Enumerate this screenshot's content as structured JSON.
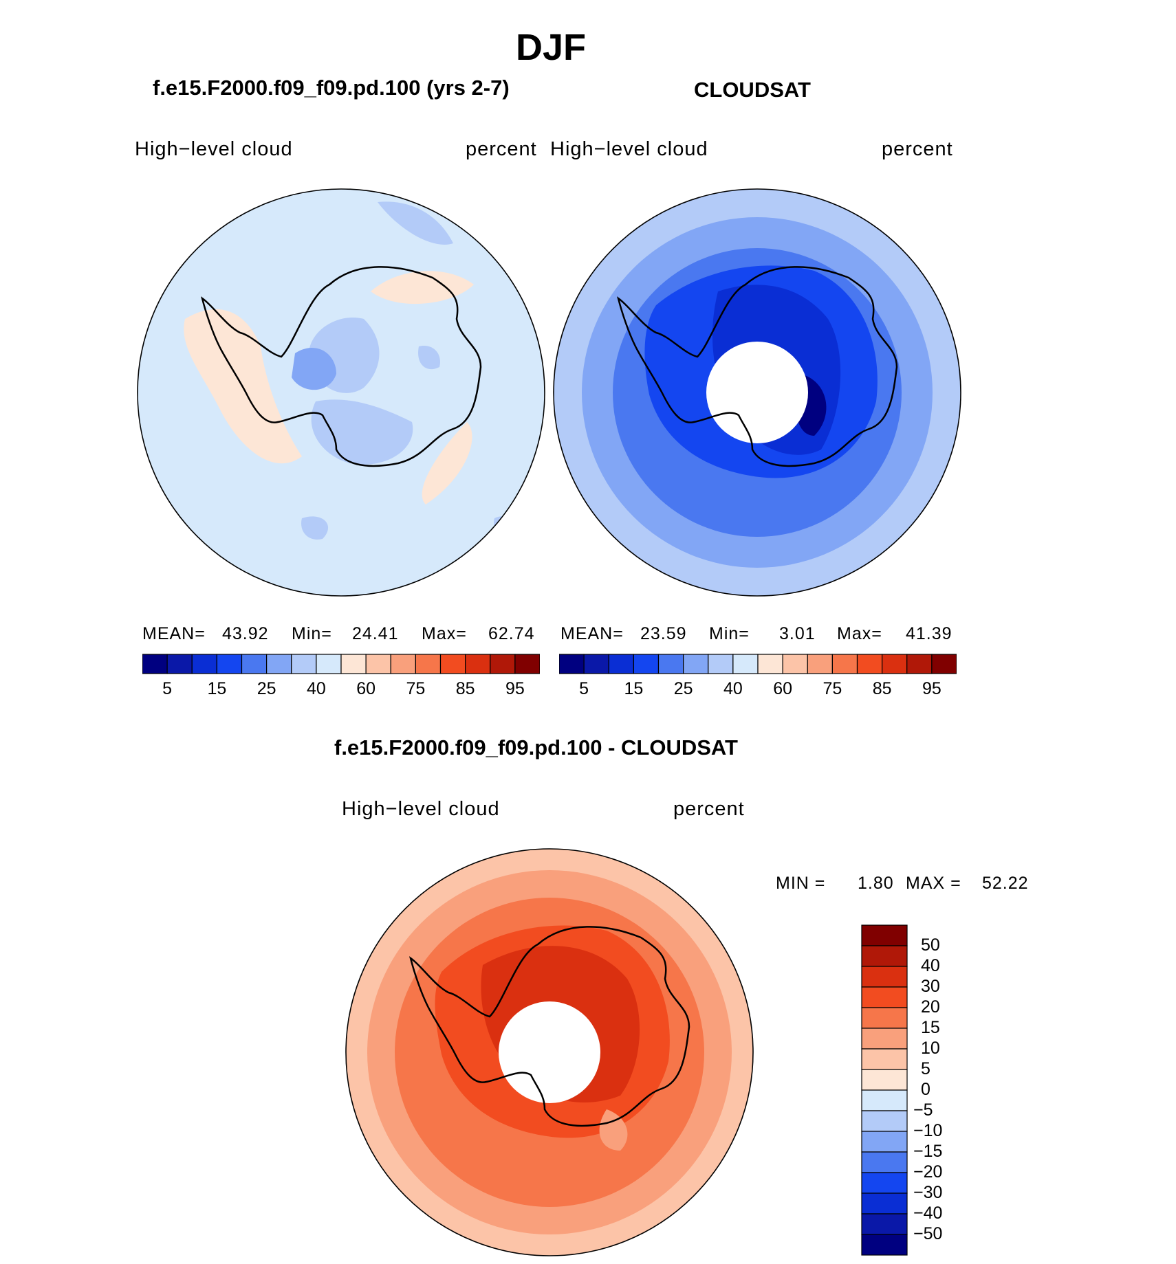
{
  "figure": {
    "season": "DJF",
    "panel_a": {
      "title": "f.e15.F2000.f09_f09.pd.100 (yrs 2-7)",
      "var_label": "High−level  cloud",
      "units": "percent",
      "stats": {
        "mean_label": "MEAN=",
        "mean": "43.92",
        "min_label": "Min=",
        "min": "24.41",
        "max_label": "Max=",
        "max": "62.74"
      }
    },
    "panel_b": {
      "title": "CLOUDSAT",
      "var_label": "High−level  cloud",
      "units": "percent",
      "stats": {
        "mean_label": "MEAN=",
        "mean": "23.59",
        "min_label": "Min=",
        "min": "3.01",
        "max_label": "Max=",
        "max": "41.39"
      }
    },
    "panel_c": {
      "title": "f.e15.F2000.f09_f09.pd.100 - CLOUDSAT",
      "var_label": "High−level  cloud",
      "units": "percent",
      "stats": {
        "min_label": "MIN =",
        "min": "1.80",
        "max_label": "MAX =",
        "max": "52.22"
      }
    },
    "colorbar_top": {
      "colors": [
        "#000080",
        "#0a18a8",
        "#0a2ed4",
        "#1446f0",
        "#4a78f0",
        "#82a6f5",
        "#b3cbf8",
        "#d6e9fb",
        "#fde6d6",
        "#fcc4a8",
        "#f9a07c",
        "#f6764a",
        "#f24c20",
        "#da3010",
        "#b01808",
        "#800000"
      ],
      "tick_labels": [
        "5",
        "15",
        "25",
        "40",
        "60",
        "75",
        "85",
        "95"
      ]
    },
    "colorbar_diff": {
      "colors": [
        "#000080",
        "#0a18a8",
        "#0a2ed4",
        "#1446f0",
        "#4a78f0",
        "#82a6f5",
        "#b3cbf8",
        "#d6e9fb",
        "#fde6d6",
        "#fcc4a8",
        "#f9a07c",
        "#f6764a",
        "#f24c20",
        "#da3010",
        "#b01808",
        "#800000"
      ],
      "tick_labels": [
        "50",
        "40",
        "30",
        "20",
        "15",
        "10",
        "5",
        "0",
        "−5",
        "−10",
        "−15",
        "−20",
        "−30",
        "−40",
        "−50"
      ]
    }
  }
}
